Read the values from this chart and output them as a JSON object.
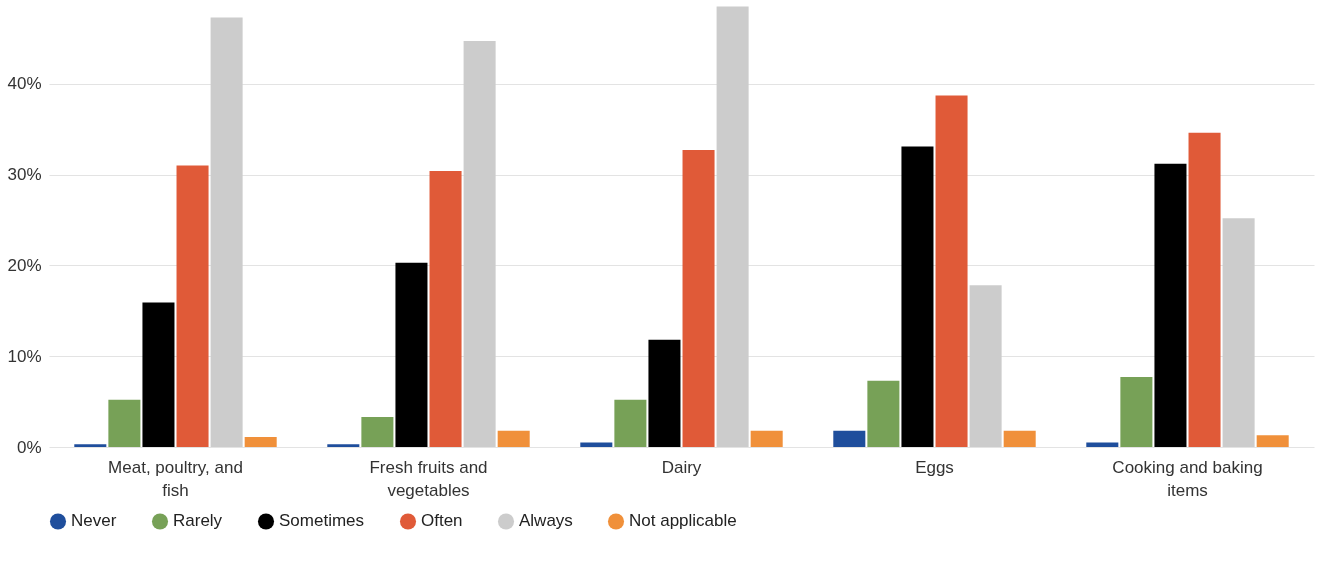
{
  "chart_data": {
    "type": "bar",
    "categories": [
      "Meat, poultry, and fish",
      "Fresh fruits and vegetables",
      "Dairy",
      "Eggs",
      "Cooking and baking items"
    ],
    "series": [
      {
        "name": "Never",
        "color": "#1f4e9c",
        "values": [
          0.3,
          0.3,
          0.5,
          1.8,
          0.5
        ]
      },
      {
        "name": "Rarely",
        "color": "#77a157",
        "values": [
          5.2,
          3.3,
          5.2,
          7.3,
          7.7
        ]
      },
      {
        "name": "Sometimes",
        "color": "#000000",
        "values": [
          15.9,
          20.3,
          11.8,
          33.1,
          31.2
        ]
      },
      {
        "name": "Often",
        "color": "#e05a38",
        "values": [
          31.0,
          30.4,
          32.7,
          38.7,
          34.6
        ]
      },
      {
        "name": "Always",
        "color": "#cccccc",
        "values": [
          47.3,
          44.7,
          48.5,
          17.8,
          25.2
        ]
      },
      {
        "name": "Not applicable",
        "color": "#f0903a",
        "values": [
          1.1,
          1.8,
          1.8,
          1.8,
          1.3
        ]
      }
    ],
    "ylim": [
      0,
      49
    ],
    "yticks": [
      {
        "value": 0,
        "label": "0%"
      },
      {
        "value": 10,
        "label": "10%"
      },
      {
        "value": 20,
        "label": "20%"
      },
      {
        "value": 30,
        "label": "30%"
      },
      {
        "value": 40,
        "label": "40%"
      }
    ],
    "grid": "y",
    "legend": "bottom left",
    "marker": "circle"
  }
}
